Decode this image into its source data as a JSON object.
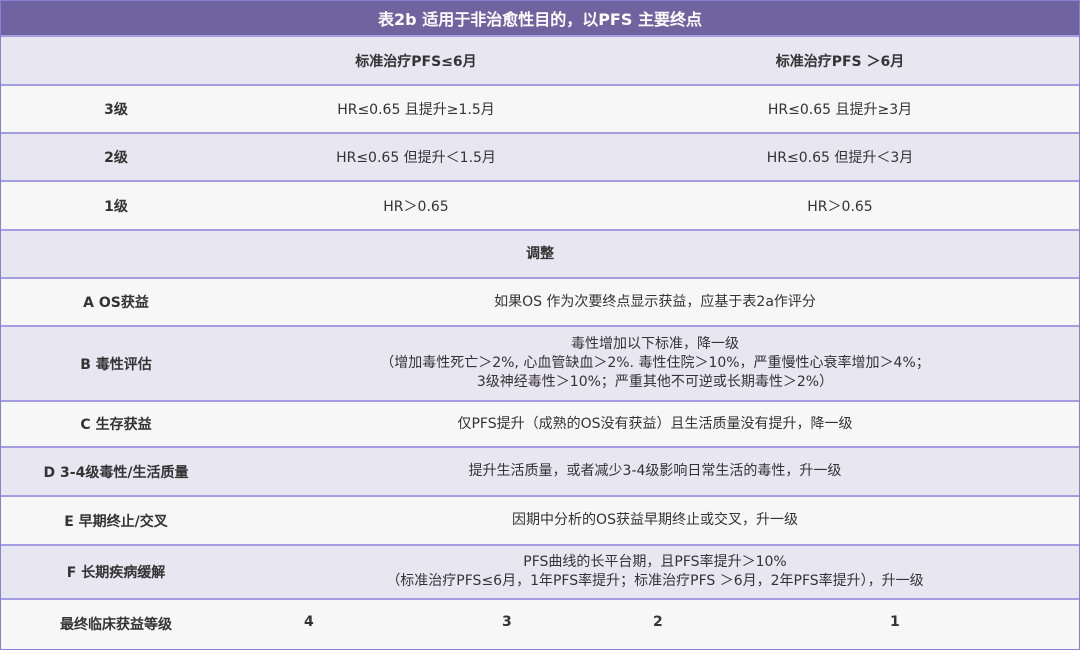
{
  "title": "表2b 适用于非治愈性目的，以PFS 主要终点",
  "columns": [
    "",
    "标准治疗PFS≤6月",
    "标准治疗PFS ＞6月"
  ],
  "grades": [
    {
      "label": "3级",
      "a": "HR≤0.65 且提升≥1.5月",
      "b": "HR≤0.65 且提升≥3月"
    },
    {
      "label": "2级",
      "a": "HR≤0.65 但提升＜1.5月",
      "b": "HR≤0.65 但提升＜3月"
    },
    {
      "label": "1级",
      "a": "HR＞0.65",
      "b": "HR＞0.65"
    }
  ],
  "adjust_header": "调整",
  "adjustments": [
    {
      "label": "A OS获益",
      "lines": [
        "如果OS 作为次要终点显示获益，应基于表2a作评分"
      ]
    },
    {
      "label": "B 毒性评估",
      "lines": [
        "毒性增加以下标准，降一级",
        "（增加毒性死亡＞2%, 心血管缺血＞2%. 毒性住院＞10%，严重慢性心衰率增加＞4%；",
        "3级神经毒性＞10%；严重其他不可逆或长期毒性＞2%）"
      ]
    },
    {
      "label": "C 生存获益",
      "lines": [
        "仅PFS提升（成熟的OS没有获益）且生活质量没有提升，降一级"
      ]
    },
    {
      "label": "D 3-4级毒性/生活质量",
      "lines": [
        "提升生活质量，或者减少3-4级影响日常生活的毒性，升一级"
      ]
    },
    {
      "label": "E 早期终止/交叉",
      "lines": [
        "因期中分析的OS获益早期终止或交叉，升一级"
      ]
    },
    {
      "label": "F 长期疾病缓解",
      "lines": [
        "PFS曲线的长平台期，且PFS率提升＞10%",
        "（标准治疗PFS≤6月，1年PFS率提升；标准治疗PFS ＞6月，2年PFS率提升），升一级"
      ]
    }
  ],
  "final": {
    "label": "最终临床获益等级",
    "values": [
      "4",
      "3",
      "2",
      "1"
    ]
  },
  "colors": {
    "header": "#6f63a0",
    "border": "#a69de0",
    "alt_row": "#e8e6f0"
  }
}
